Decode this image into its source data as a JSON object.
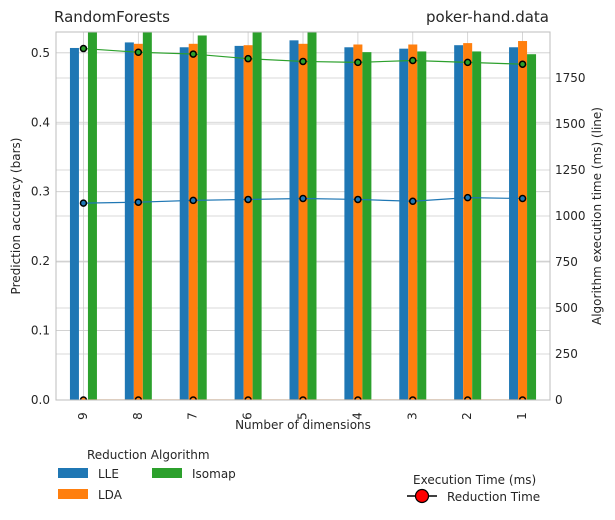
{
  "chart_data": {
    "type": "bar",
    "title_left": "RandomForests",
    "title_right": "poker-hand.data",
    "xlabel": "Number of dimensions",
    "ylabel_left": "Prediction accuracy (bars)",
    "ylabel_right": "Algorithm execution time (ms) (line)",
    "categories": [
      "9",
      "8",
      "7",
      "6",
      "5",
      "4",
      "3",
      "2",
      "1"
    ],
    "ylim_left": [
      0,
      0.53
    ],
    "yticks_left": [
      "0.0",
      "0.1",
      "0.2",
      "0.3",
      "0.4",
      "0.5"
    ],
    "ylim_right": [
      0,
      2000
    ],
    "yticks_right": [
      "0",
      "250",
      "500",
      "750",
      "1000",
      "1250",
      "1500",
      "1750"
    ],
    "grid": true,
    "bar_series": [
      {
        "name": "LLE",
        "color": "#1f77b4",
        "values": [
          0.507,
          0.515,
          0.508,
          0.51,
          0.518,
          0.508,
          0.506,
          0.511,
          0.508
        ]
      },
      {
        "name": "LDA",
        "color": "#ff7f0e",
        "values": [
          0.0,
          0.513,
          0.513,
          0.511,
          0.513,
          0.512,
          0.512,
          0.514,
          0.517
        ]
      },
      {
        "name": "Isomap",
        "color": "#2ca02c",
        "values": [
          0.535,
          0.53,
          0.525,
          0.535,
          0.53,
          0.501,
          0.502,
          0.502,
          0.498
        ]
      }
    ],
    "line_series": [
      {
        "name": "LLE",
        "color": "#1f77b4",
        "values": [
          1070,
          1075,
          1085,
          1090,
          1095,
          1090,
          1080,
          1100,
          1095
        ]
      },
      {
        "name": "LDA",
        "color": "#ff7f0e",
        "values": [
          0,
          0,
          0,
          0,
          0,
          0,
          0,
          0,
          0
        ]
      },
      {
        "name": "Isomap",
        "color": "#2ca02c",
        "values": [
          1910,
          1890,
          1880,
          1855,
          1840,
          1835,
          1845,
          1835,
          1825
        ]
      }
    ],
    "legend_title": "Reduction Algorithm",
    "legend2_title": "Execution Time (ms)",
    "legend2_entry": "Reduction Time",
    "legend2_marker_color": "#ff0000"
  }
}
